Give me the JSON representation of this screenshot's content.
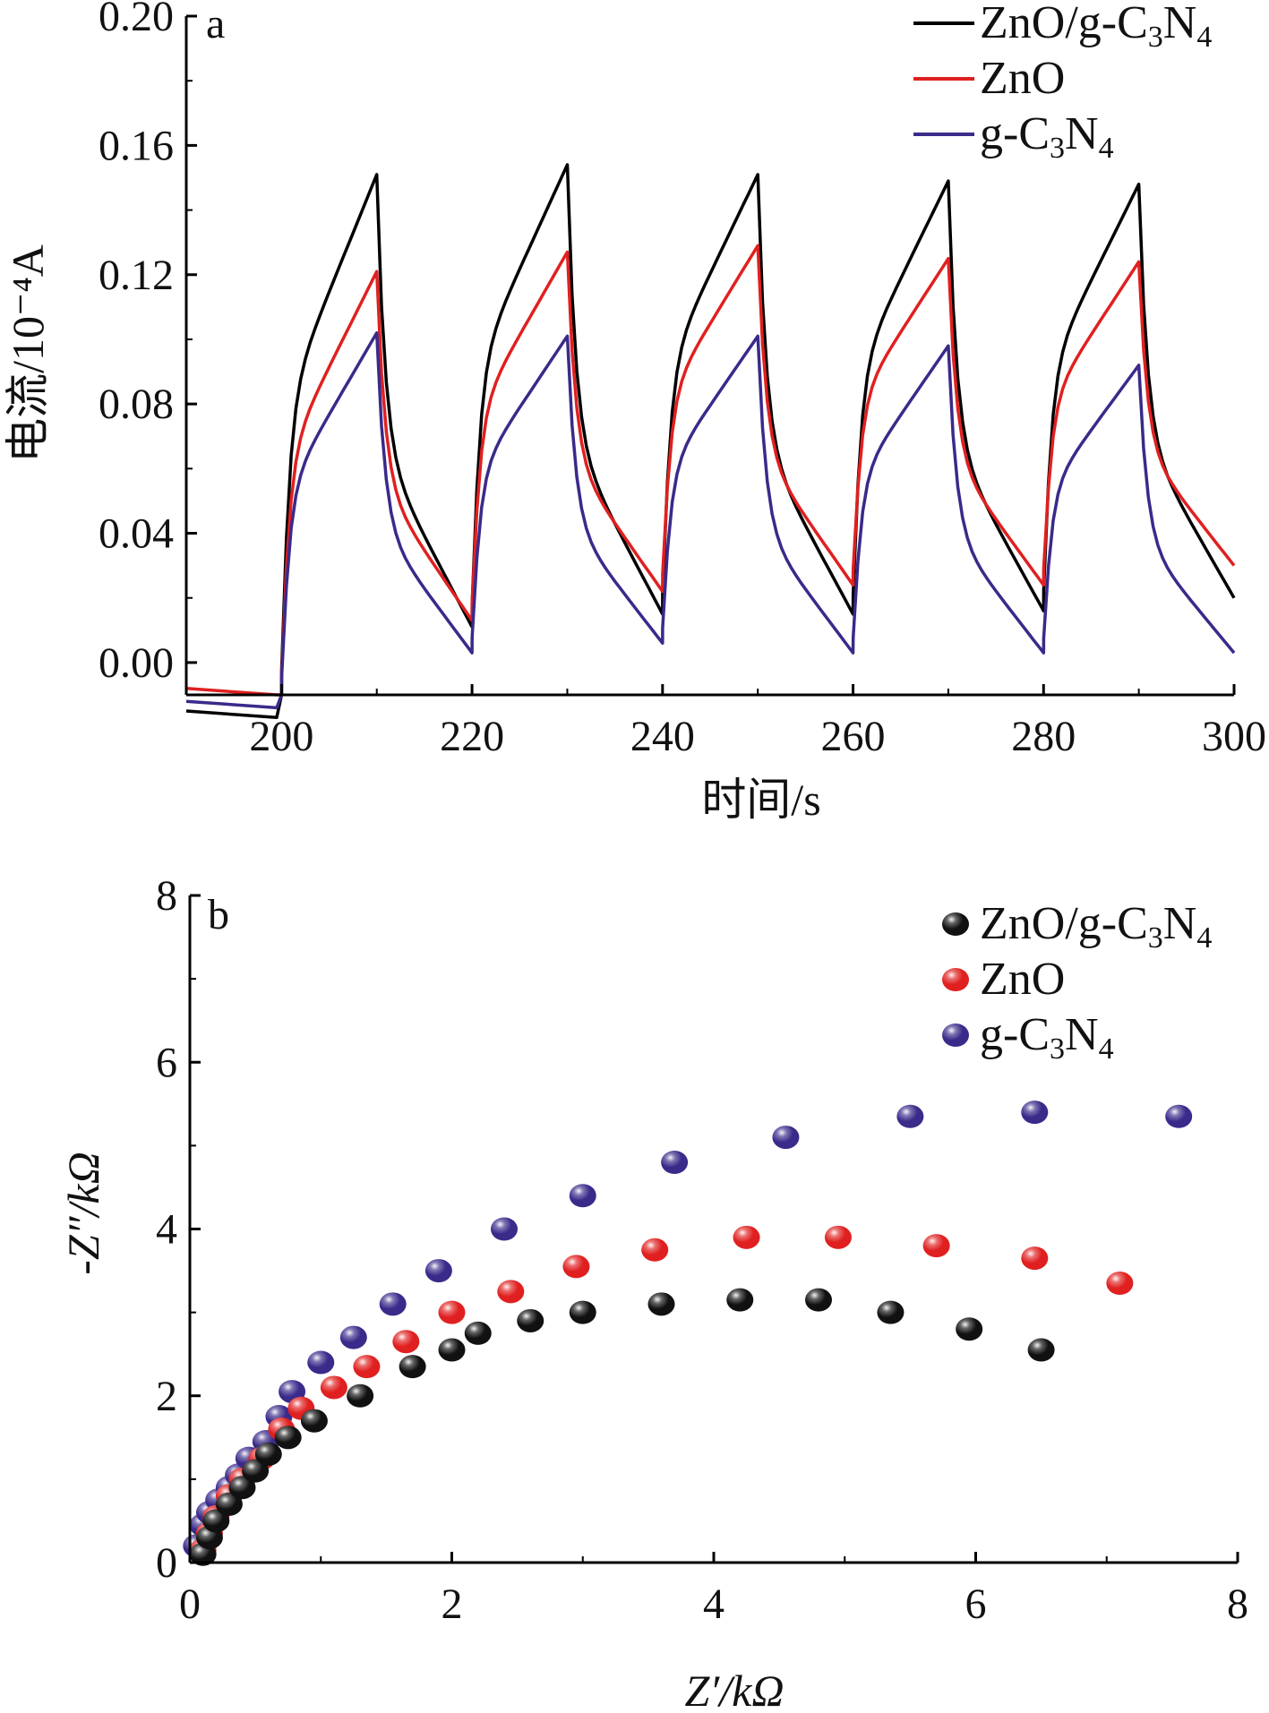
{
  "chart_data": [
    {
      "type": "line",
      "panel_label": "a",
      "xlabel": "时间/s",
      "ylabel": "电流/10⁻⁴A",
      "xlim": [
        190,
        300
      ],
      "ylim": [
        -0.01,
        0.2
      ],
      "xticks": [
        "200",
        "220",
        "240",
        "260",
        "280",
        "300"
      ],
      "yticks": [
        "0.00",
        "0.04",
        "0.08",
        "0.12",
        "0.16",
        "0.20"
      ],
      "legend_position": "top-right",
      "light_on": [
        200,
        220,
        240,
        260,
        280
      ],
      "light_off": [
        210,
        230,
        250,
        270,
        290
      ],
      "series": [
        {
          "name": "ZnO/g-C3N4",
          "color": "#000000",
          "off_baseline": -0.015,
          "on_peaks": [
            0.151,
            0.154,
            0.151,
            0.149,
            0.148
          ],
          "off_minima": [
            0.011,
            0.015,
            0.015,
            0.016,
            0.02
          ]
        },
        {
          "name": "ZnO",
          "color": "#e02020",
          "off_baseline": -0.008,
          "on_peaks": [
            0.121,
            0.127,
            0.129,
            0.125,
            0.124
          ],
          "off_minima": [
            0.013,
            0.022,
            0.024,
            0.024,
            0.03
          ]
        },
        {
          "name": "g-C3N4",
          "color": "#3a2a8a",
          "off_baseline": -0.012,
          "on_peaks": [
            0.102,
            0.101,
            0.101,
            0.098,
            0.092
          ],
          "off_minima": [
            0.003,
            0.006,
            0.003,
            0.003,
            0.003
          ]
        }
      ]
    },
    {
      "type": "scatter",
      "panel_label": "b",
      "xlabel": "Z′/kΩ",
      "ylabel": "-Z″/kΩ",
      "xlim": [
        0,
        8
      ],
      "ylim": [
        0,
        8
      ],
      "xticks": [
        "0",
        "2",
        "4",
        "6",
        "8"
      ],
      "yticks": [
        "0",
        "2",
        "4",
        "6",
        "8"
      ],
      "legend_position": "top-right",
      "series": [
        {
          "name": "ZnO/g-C3N4",
          "color": "#111111",
          "points": [
            [
              0.1,
              0.1
            ],
            [
              0.15,
              0.3
            ],
            [
              0.2,
              0.5
            ],
            [
              0.3,
              0.7
            ],
            [
              0.4,
              0.9
            ],
            [
              0.5,
              1.1
            ],
            [
              0.6,
              1.3
            ],
            [
              0.75,
              1.5
            ],
            [
              0.95,
              1.7
            ],
            [
              1.3,
              2.0
            ],
            [
              1.7,
              2.35
            ],
            [
              2.0,
              2.55
            ],
            [
              2.2,
              2.75
            ],
            [
              2.6,
              2.9
            ],
            [
              3.0,
              3.0
            ],
            [
              3.6,
              3.1
            ],
            [
              4.2,
              3.15
            ],
            [
              4.8,
              3.15
            ],
            [
              5.35,
              3.0
            ],
            [
              5.95,
              2.8
            ],
            [
              6.5,
              2.55
            ]
          ]
        },
        {
          "name": "ZnO",
          "color": "#e02020",
          "points": [
            [
              0.1,
              0.15
            ],
            [
              0.15,
              0.35
            ],
            [
              0.2,
              0.55
            ],
            [
              0.3,
              0.8
            ],
            [
              0.4,
              1.0
            ],
            [
              0.55,
              1.25
            ],
            [
              0.7,
              1.6
            ],
            [
              0.85,
              1.85
            ],
            [
              1.1,
              2.1
            ],
            [
              1.35,
              2.35
            ],
            [
              1.65,
              2.65
            ],
            [
              2.0,
              3.0
            ],
            [
              2.45,
              3.25
            ],
            [
              2.95,
              3.55
            ],
            [
              3.55,
              3.75
            ],
            [
              4.25,
              3.9
            ],
            [
              4.95,
              3.9
            ],
            [
              5.7,
              3.8
            ],
            [
              6.45,
              3.65
            ],
            [
              7.1,
              3.35
            ]
          ]
        },
        {
          "name": "g-C3N4",
          "color": "#3a2a8a",
          "points": [
            [
              0.05,
              0.2
            ],
            [
              0.1,
              0.45
            ],
            [
              0.15,
              0.6
            ],
            [
              0.22,
              0.75
            ],
            [
              0.3,
              0.9
            ],
            [
              0.37,
              1.05
            ],
            [
              0.45,
              1.25
            ],
            [
              0.58,
              1.45
            ],
            [
              0.68,
              1.75
            ],
            [
              0.78,
              2.05
            ],
            [
              1.0,
              2.4
            ],
            [
              1.25,
              2.7
            ],
            [
              1.55,
              3.1
            ],
            [
              1.9,
              3.5
            ],
            [
              2.4,
              4.0
            ],
            [
              3.0,
              4.4
            ],
            [
              3.7,
              4.8
            ],
            [
              4.55,
              5.1
            ],
            [
              5.5,
              5.35
            ],
            [
              6.45,
              5.4
            ],
            [
              7.55,
              5.35
            ]
          ]
        }
      ]
    }
  ]
}
